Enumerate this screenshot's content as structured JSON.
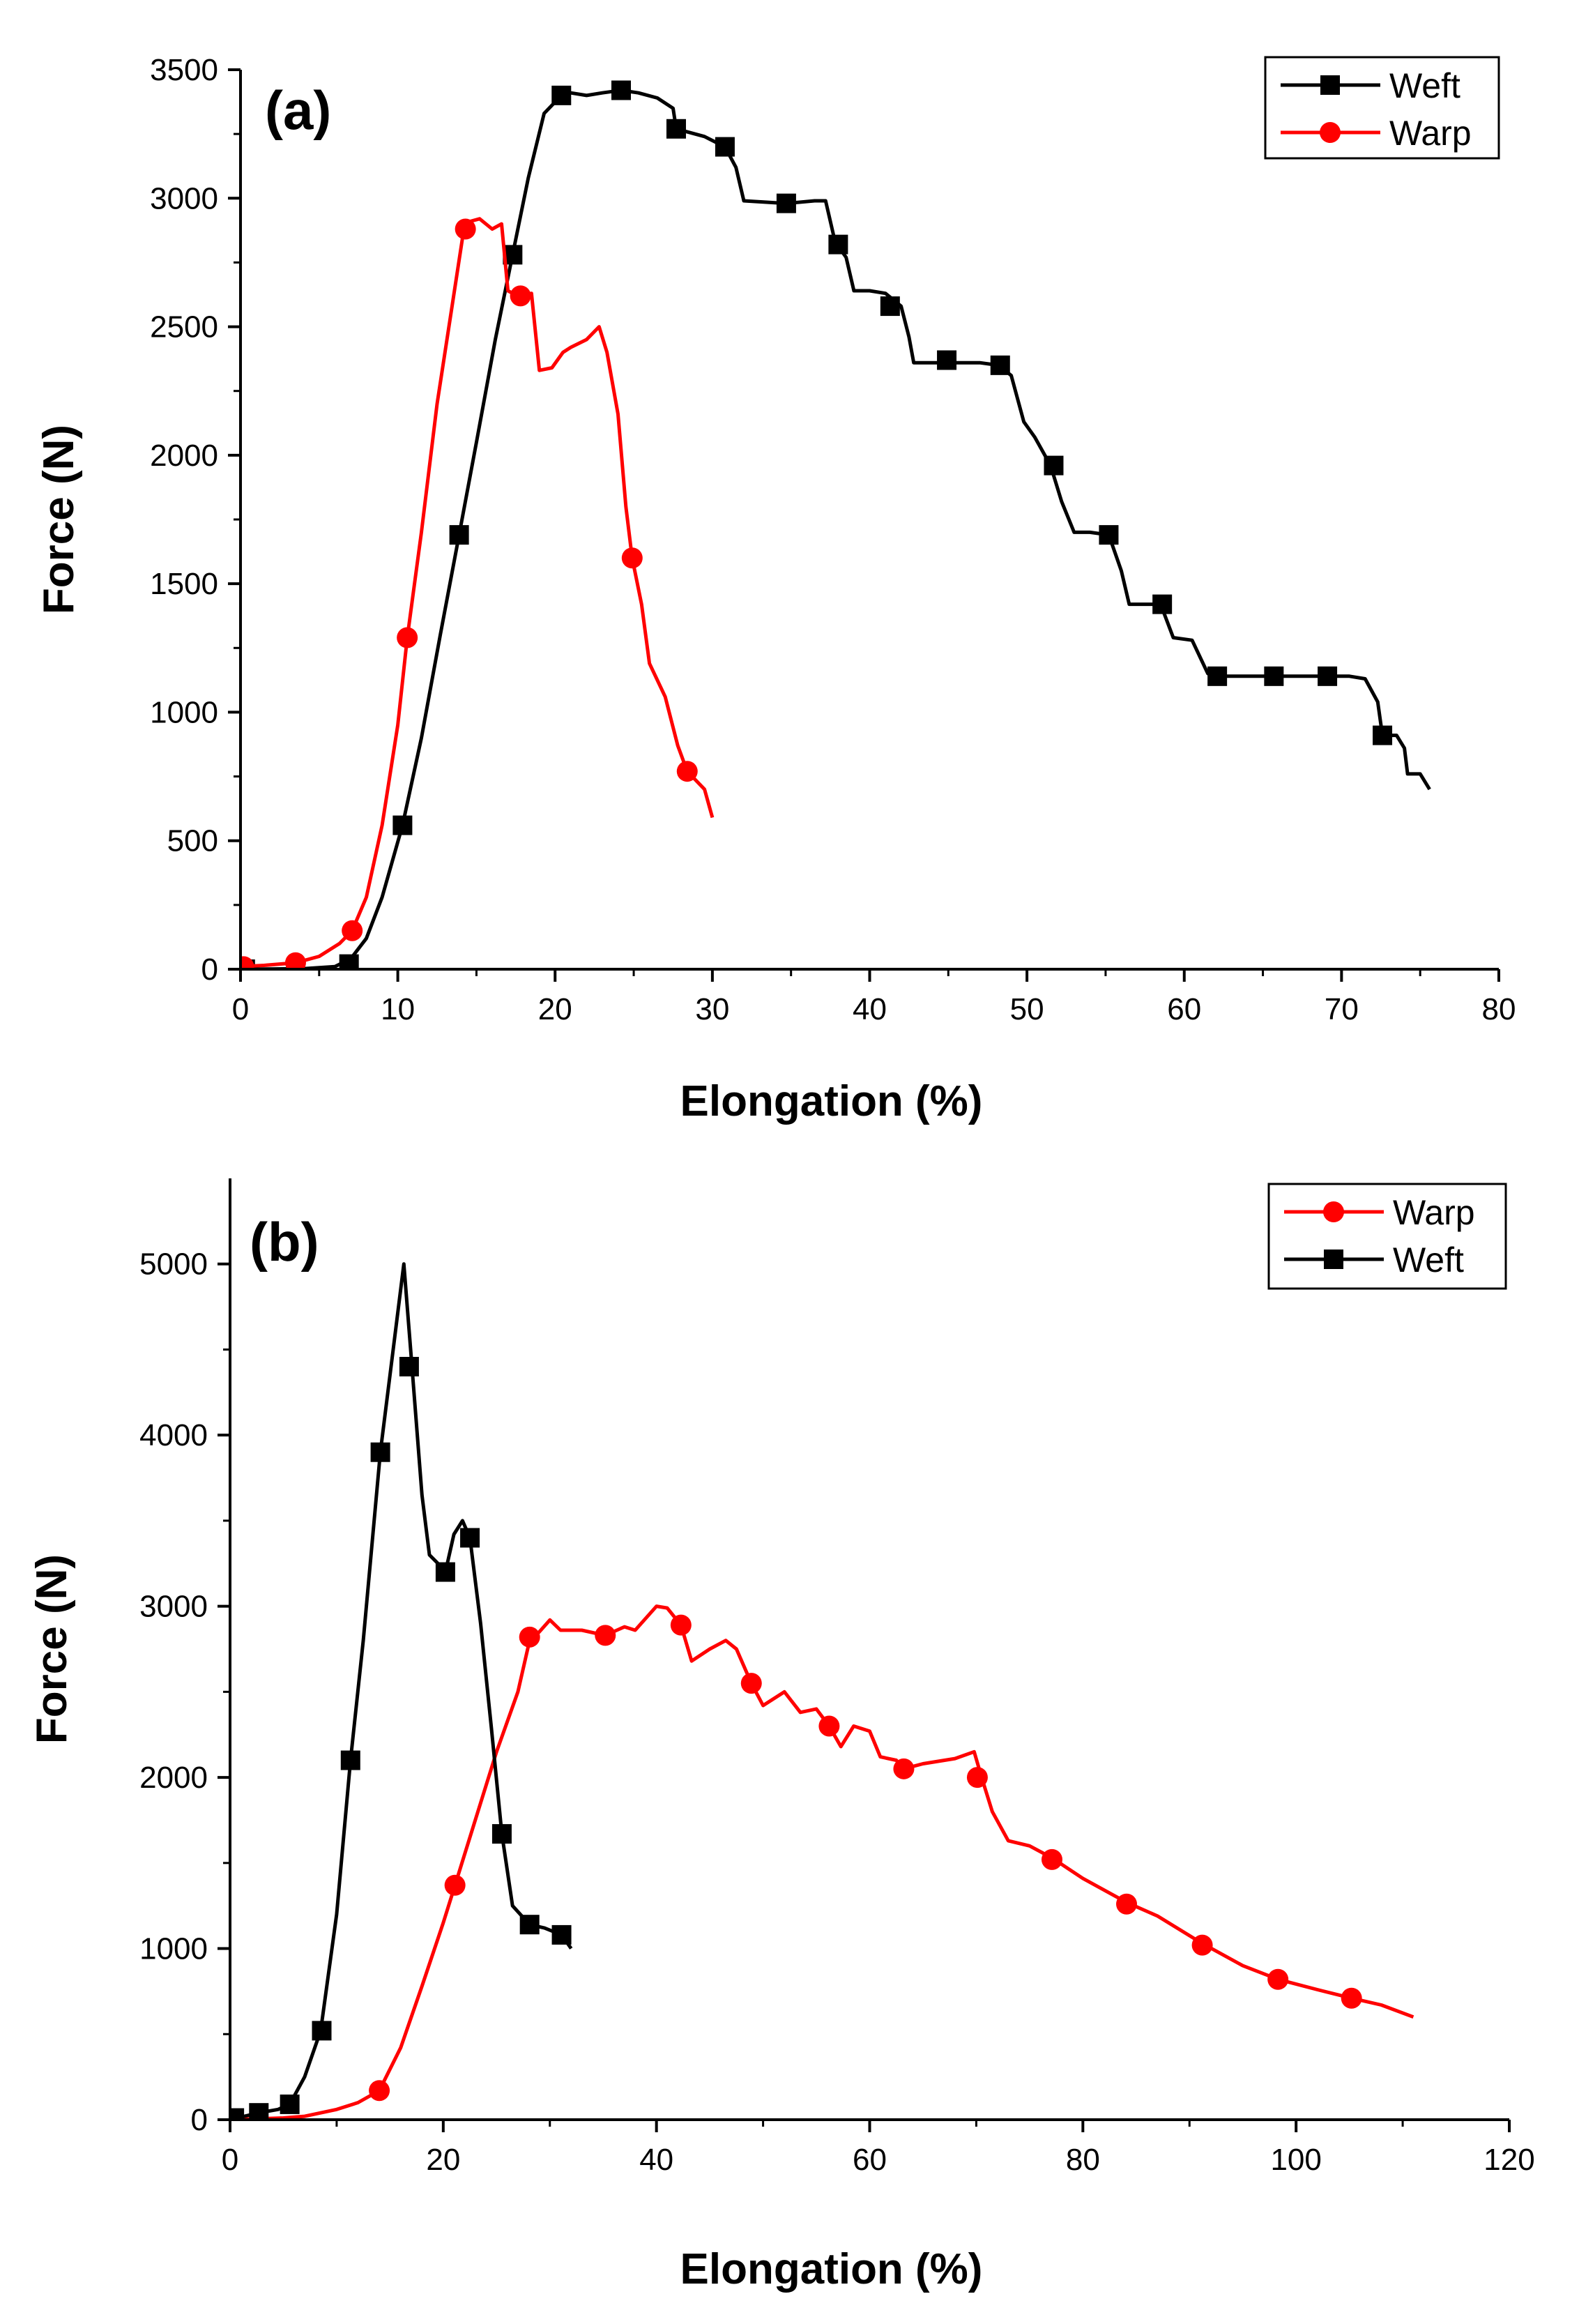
{
  "chart_data": [
    {
      "type": "line",
      "panel_label": "(a)",
      "xlabel": "Elongation (%)",
      "ylabel": "Force (N)",
      "xlim": [
        0,
        80
      ],
      "ylim": [
        0,
        3500
      ],
      "xticks": [
        0,
        10,
        20,
        30,
        40,
        50,
        60,
        70,
        80
      ],
      "yticks": [
        0,
        500,
        1000,
        1500,
        2000,
        2500,
        3000,
        3500
      ],
      "legend_position": "top-right",
      "series": [
        {
          "name": "Weft",
          "color": "#000000",
          "marker": "square",
          "points": [
            [
              0,
              0
            ],
            [
              4,
              2
            ],
            [
              6,
              10
            ],
            [
              7,
              40
            ],
            [
              8,
              120
            ],
            [
              9,
              280
            ],
            [
              10.3,
              560
            ],
            [
              11.5,
              900
            ],
            [
              12.7,
              1300
            ],
            [
              13.9,
              1690
            ],
            [
              15,
              2050
            ],
            [
              16.2,
              2450
            ],
            [
              17.3,
              2780
            ],
            [
              18.3,
              3080
            ],
            [
              19.3,
              3330
            ],
            [
              20.4,
              3400
            ],
            [
              21,
              3410
            ],
            [
              22,
              3400
            ],
            [
              23,
              3410
            ],
            [
              24.2,
              3420
            ],
            [
              25.3,
              3410
            ],
            [
              26.5,
              3390
            ],
            [
              27.5,
              3350
            ],
            [
              27.7,
              3270
            ],
            [
              29.5,
              3240
            ],
            [
              30.8,
              3200
            ],
            [
              31.5,
              3120
            ],
            [
              32,
              2990
            ],
            [
              34.7,
              2980
            ],
            [
              36.5,
              2990
            ],
            [
              37.2,
              2990
            ],
            [
              37.8,
              2830
            ],
            [
              38.5,
              2770
            ],
            [
              39,
              2640
            ],
            [
              40,
              2640
            ],
            [
              41,
              2630
            ],
            [
              42,
              2580
            ],
            [
              42.5,
              2460
            ],
            [
              42.8,
              2360
            ],
            [
              45,
              2360
            ],
            [
              47,
              2360
            ],
            [
              48.2,
              2350
            ],
            [
              49,
              2310
            ],
            [
              49.8,
              2130
            ],
            [
              50.5,
              2070
            ],
            [
              51.5,
              1960
            ],
            [
              52.2,
              1820
            ],
            [
              53,
              1700
            ],
            [
              54,
              1700
            ],
            [
              55.2,
              1690
            ],
            [
              56,
              1550
            ],
            [
              56.5,
              1420
            ],
            [
              58.5,
              1420
            ],
            [
              59.3,
              1290
            ],
            [
              60.5,
              1280
            ],
            [
              61.5,
              1150
            ],
            [
              62.2,
              1140
            ],
            [
              64,
              1140
            ],
            [
              65.9,
              1140
            ],
            [
              67.5,
              1140
            ],
            [
              69,
              1140
            ],
            [
              70.5,
              1140
            ],
            [
              71.5,
              1130
            ],
            [
              72.3,
              1040
            ],
            [
              72.6,
              910
            ],
            [
              73.5,
              910
            ],
            [
              74,
              860
            ],
            [
              74.2,
              760
            ],
            [
              75,
              760
            ],
            [
              75.6,
              700
            ]
          ],
          "markers": [
            [
              0.3,
              0
            ],
            [
              6.9,
              20
            ],
            [
              10.3,
              560
            ],
            [
              13.9,
              1690
            ],
            [
              17.3,
              2780
            ],
            [
              20.4,
              3400
            ],
            [
              24.2,
              3420
            ],
            [
              27.7,
              3270
            ],
            [
              30.8,
              3200
            ],
            [
              34.7,
              2980
            ],
            [
              38,
              2820
            ],
            [
              41.3,
              2580
            ],
            [
              44.9,
              2370
            ],
            [
              48.3,
              2350
            ],
            [
              51.7,
              1960
            ],
            [
              55.2,
              1690
            ],
            [
              58.6,
              1420
            ],
            [
              62.1,
              1140
            ],
            [
              65.7,
              1140
            ],
            [
              69.1,
              1140
            ],
            [
              72.6,
              910
            ]
          ]
        },
        {
          "name": "Warp",
          "color": "#ff0000",
          "marker": "circle",
          "points": [
            [
              0,
              10
            ],
            [
              1.5,
              15
            ],
            [
              3.5,
              25
            ],
            [
              5,
              50
            ],
            [
              6.3,
              100
            ],
            [
              7.1,
              150
            ],
            [
              8,
              280
            ],
            [
              9,
              560
            ],
            [
              10,
              950
            ],
            [
              10.6,
              1290
            ],
            [
              11.5,
              1700
            ],
            [
              12.5,
              2200
            ],
            [
              13.5,
              2600
            ],
            [
              14.2,
              2880
            ],
            [
              14.6,
              2910
            ],
            [
              15.2,
              2920
            ],
            [
              16,
              2880
            ],
            [
              16.6,
              2900
            ],
            [
              17,
              2640
            ],
            [
              17.6,
              2620
            ],
            [
              18.5,
              2630
            ],
            [
              19,
              2330
            ],
            [
              19.8,
              2340
            ],
            [
              20.5,
              2400
            ],
            [
              21,
              2420
            ],
            [
              22,
              2450
            ],
            [
              22.8,
              2500
            ],
            [
              23.3,
              2400
            ],
            [
              24,
              2160
            ],
            [
              24.5,
              1800
            ],
            [
              24.9,
              1600
            ],
            [
              25.5,
              1420
            ],
            [
              26,
              1190
            ],
            [
              27,
              1060
            ],
            [
              27.8,
              870
            ],
            [
              28.4,
              770
            ],
            [
              29.5,
              700
            ],
            [
              30,
              590
            ]
          ],
          "markers": [
            [
              0.2,
              10
            ],
            [
              3.5,
              25
            ],
            [
              7.1,
              150
            ],
            [
              10.6,
              1290
            ],
            [
              14.3,
              2880
            ],
            [
              17.8,
              2620
            ],
            [
              24.9,
              1600
            ],
            [
              28.4,
              770
            ]
          ]
        }
      ]
    },
    {
      "type": "line",
      "panel_label": "(b)",
      "xlabel": "Elongation (%)",
      "ylabel": "Force (N)",
      "xlim": [
        0,
        120
      ],
      "ylim": [
        0,
        5500
      ],
      "xticks": [
        0,
        20,
        40,
        60,
        80,
        100,
        120
      ],
      "yticks": [
        0,
        1000,
        2000,
        3000,
        4000,
        5000
      ],
      "legend_position": "top-right",
      "series": [
        {
          "name": "Warp",
          "color": "#ff0000",
          "marker": "circle",
          "points": [
            [
              0,
              0
            ],
            [
              5,
              10
            ],
            [
              7,
              20
            ],
            [
              10,
              60
            ],
            [
              12,
              100
            ],
            [
              14,
              170
            ],
            [
              16,
              420
            ],
            [
              18,
              780
            ],
            [
              20,
              1150
            ],
            [
              21.1,
              1370
            ],
            [
              23,
              1750
            ],
            [
              25,
              2150
            ],
            [
              27,
              2500
            ],
            [
              28.1,
              2800
            ],
            [
              29,
              2850
            ],
            [
              30,
              2920
            ],
            [
              31,
              2860
            ],
            [
              33,
              2860
            ],
            [
              35.2,
              2830
            ],
            [
              37,
              2880
            ],
            [
              38,
              2860
            ],
            [
              40,
              3000
            ],
            [
              41,
              2990
            ],
            [
              42.3,
              2890
            ],
            [
              43.3,
              2680
            ],
            [
              45,
              2750
            ],
            [
              46.5,
              2800
            ],
            [
              47.5,
              2750
            ],
            [
              48.9,
              2550
            ],
            [
              50,
              2420
            ],
            [
              52,
              2500
            ],
            [
              53.5,
              2380
            ],
            [
              55,
              2400
            ],
            [
              56.2,
              2300
            ],
            [
              57.3,
              2180
            ],
            [
              58.5,
              2300
            ],
            [
              60,
              2270
            ],
            [
              61,
              2120
            ],
            [
              62.5,
              2100
            ],
            [
              63.2,
              2050
            ],
            [
              65,
              2080
            ],
            [
              68,
              2110
            ],
            [
              69.8,
              2150
            ],
            [
              70.5,
              2000
            ],
            [
              71.5,
              1800
            ],
            [
              73,
              1630
            ],
            [
              75,
              1600
            ],
            [
              77.1,
              1530
            ],
            [
              80,
              1410
            ],
            [
              84.1,
              1270
            ],
            [
              87,
              1190
            ],
            [
              91.2,
              1030
            ],
            [
              95,
              900
            ],
            [
              98.3,
              820
            ],
            [
              102,
              760
            ],
            [
              105.2,
              710
            ],
            [
              108,
              670
            ],
            [
              111,
              600
            ]
          ],
          "markers": [
            [
              14,
              170
            ],
            [
              21.1,
              1370
            ],
            [
              28.1,
              2820
            ],
            [
              35.2,
              2830
            ],
            [
              42.3,
              2890
            ],
            [
              48.9,
              2550
            ],
            [
              56.2,
              2300
            ],
            [
              63.2,
              2050
            ],
            [
              70.1,
              2000
            ],
            [
              77.1,
              1520
            ],
            [
              84.1,
              1260
            ],
            [
              91.2,
              1020
            ],
            [
              98.3,
              820
            ],
            [
              105.2,
              710
            ]
          ]
        },
        {
          "name": "Weft",
          "color": "#000000",
          "marker": "square",
          "points": [
            [
              0,
              0
            ],
            [
              2.7,
              40
            ],
            [
              4.5,
              60
            ],
            [
              5.6,
              90
            ],
            [
              7,
              250
            ],
            [
              8.5,
              520
            ],
            [
              10,
              1200
            ],
            [
              11.3,
              2100
            ],
            [
              12.5,
              2800
            ],
            [
              14.1,
              3900
            ],
            [
              15.3,
              4500
            ],
            [
              16.3,
              5000
            ],
            [
              17,
              4450
            ],
            [
              18,
              3650
            ],
            [
              18.7,
              3300
            ],
            [
              19.5,
              3250
            ],
            [
              20.2,
              3200
            ],
            [
              21,
              3420
            ],
            [
              21.8,
              3500
            ],
            [
              22.5,
              3400
            ],
            [
              23.5,
              2900
            ],
            [
              24.5,
              2300
            ],
            [
              25.5,
              1670
            ],
            [
              26.5,
              1250
            ],
            [
              28.1,
              1140
            ],
            [
              29.5,
              1120
            ],
            [
              31.1,
              1080
            ],
            [
              32,
              1000
            ]
          ],
          "markers": [
            [
              0.4,
              10
            ],
            [
              2.7,
              40
            ],
            [
              5.6,
              90
            ],
            [
              8.6,
              520
            ],
            [
              11.3,
              2100
            ],
            [
              14.1,
              3900
            ],
            [
              16.8,
              4400
            ],
            [
              20.2,
              3200
            ],
            [
              22.5,
              3400
            ],
            [
              25.5,
              1670
            ],
            [
              28.1,
              1140
            ],
            [
              31.1,
              1080
            ]
          ]
        }
      ]
    }
  ]
}
